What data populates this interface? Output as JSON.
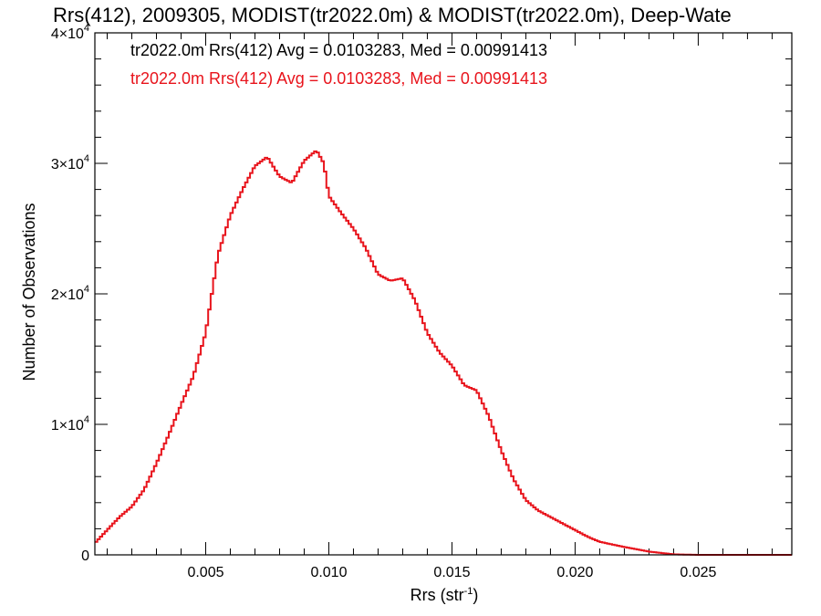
{
  "chart_data": {
    "type": "line",
    "title": "Rrs(412), 2009305, MODIST(tr2022.0m) & MODIST(tr2022.0m), Deep-Wate",
    "xlabel": "Rrs (str",
    "xlabel_sup": "-1",
    "xlabel_tail": ")",
    "ylabel": "Number of Observations",
    "xlim": [
      0.0005,
      0.0288
    ],
    "ylim": [
      0,
      40000
    ],
    "xticks": [
      0.005,
      0.01,
      0.015,
      0.02,
      0.025
    ],
    "xtick_labels": [
      "0.005",
      "0.010",
      "0.015",
      "0.020",
      "0.025"
    ],
    "yticks": [
      0,
      10000,
      20000,
      30000,
      40000
    ],
    "ytick_labels": [
      {
        "base": "0",
        "exp": ""
      },
      {
        "base": "1×10",
        "exp": "4"
      },
      {
        "base": "2×10",
        "exp": "4"
      },
      {
        "base": "3×10",
        "exp": "4"
      },
      {
        "base": "4×10",
        "exp": "4"
      }
    ],
    "grid": false,
    "step": true,
    "annotations": [
      {
        "text": "tr2022.0m Rrs(412) Avg = 0.0103283, Med = 0.00991413",
        "color": "#000000"
      },
      {
        "text": "tr2022.0m Rrs(412) Avg = 0.0103283, Med = 0.00991413",
        "color": "#e8141c"
      }
    ],
    "series": [
      {
        "color": "#e8141c",
        "x": [
          0.0005,
          0.001,
          0.0015,
          0.002,
          0.0025,
          0.003,
          0.0035,
          0.004,
          0.0045,
          0.005,
          0.0055,
          0.006,
          0.0065,
          0.007,
          0.0075,
          0.008,
          0.0085,
          0.009,
          0.0095,
          0.0098,
          0.01,
          0.0105,
          0.011,
          0.0115,
          0.012,
          0.0125,
          0.013,
          0.0135,
          0.014,
          0.0145,
          0.015,
          0.0155,
          0.016,
          0.0165,
          0.017,
          0.0175,
          0.018,
          0.0185,
          0.019,
          0.0195,
          0.02,
          0.0205,
          0.021,
          0.022,
          0.023,
          0.024,
          0.025,
          0.026,
          0.027,
          0.0288
        ],
        "y": [
          900,
          1900,
          2900,
          3700,
          5000,
          7000,
          9200,
          11500,
          13700,
          17000,
          23000,
          26000,
          28000,
          29800,
          30500,
          29000,
          28500,
          30200,
          31000,
          30000,
          27500,
          26200,
          25000,
          23500,
          21500,
          21000,
          21200,
          19500,
          17000,
          15500,
          14500,
          13000,
          12600,
          10600,
          8000,
          5800,
          4200,
          3400,
          2900,
          2400,
          1900,
          1400,
          1000,
          600,
          250,
          40,
          0,
          0,
          0,
          0
        ]
      }
    ]
  }
}
